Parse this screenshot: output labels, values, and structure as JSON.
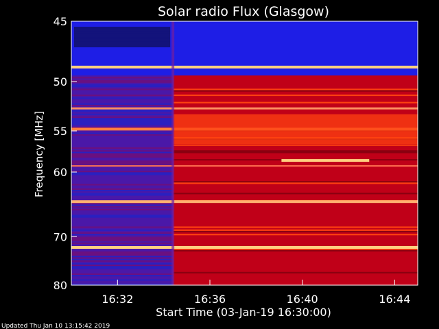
{
  "chart_data": {
    "type": "heatmap",
    "title": "Solar radio Flux (Glasgow)",
    "xlabel": "Start Time (03-Jan-19 16:30:00)",
    "ylabel": "Frequency [MHz]",
    "x_ticks": [
      "16:32",
      "16:36",
      "16:40",
      "16:44"
    ],
    "x_tick_minutes": [
      2,
      6,
      10,
      14
    ],
    "x_range_minutes": [
      0,
      15
    ],
    "y_ticks": [
      45,
      50,
      55,
      60,
      70,
      80
    ],
    "y_range": [
      45,
      80
    ],
    "low_emission_color": "#1e1ee6",
    "mid_emission_color": "#c00018",
    "high_emission_color": "#ff4010",
    "line_emission_color": "#ffd080",
    "events": [
      {
        "description_type": "onset",
        "time_minute": 4.4
      },
      {
        "description_type": "narrowband",
        "time_start_minute": 9.1,
        "time_end_minute": 12.9,
        "frequency_mhz": 58.5
      }
    ]
  },
  "footer": {
    "updated": "Updated Thu Jan 10 13:15:42 2019"
  }
}
